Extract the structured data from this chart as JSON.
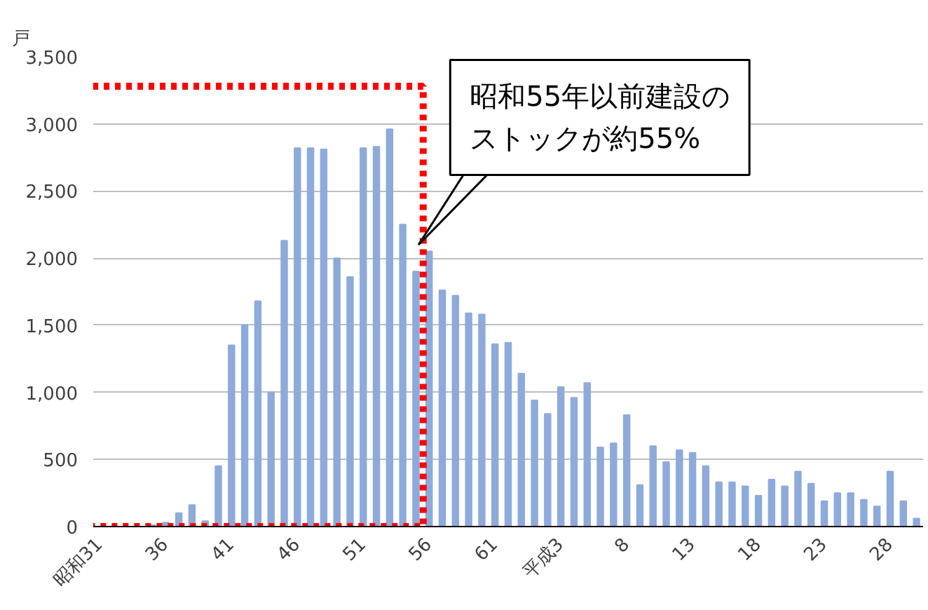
{
  "chart_data": {
    "type": "bar",
    "ylabel": "戸",
    "categories": [
      "昭和31",
      null,
      null,
      null,
      null,
      "36",
      null,
      null,
      null,
      null,
      "41",
      null,
      null,
      null,
      null,
      "46",
      null,
      null,
      null,
      null,
      "51",
      null,
      null,
      null,
      null,
      "56",
      null,
      null,
      null,
      null,
      "61",
      null,
      null,
      null,
      null,
      "平成3",
      null,
      null,
      null,
      null,
      "8",
      null,
      null,
      null,
      null,
      "13",
      null,
      null,
      null,
      null,
      "18",
      null,
      null,
      null,
      null,
      "23",
      null,
      null,
      null,
      null,
      "28",
      null,
      null
    ],
    "values": [
      0,
      0,
      0,
      0,
      10,
      30,
      100,
      160,
      40,
      450,
      1350,
      1500,
      1680,
      1000,
      2130,
      2820,
      2820,
      2810,
      2000,
      1860,
      2820,
      2830,
      2960,
      2250,
      1900,
      2050,
      1760,
      1720,
      1590,
      1580,
      1360,
      1370,
      1140,
      940,
      840,
      1040,
      960,
      1070,
      590,
      620,
      830,
      310,
      600,
      480,
      570,
      550,
      450,
      330,
      330,
      300,
      230,
      350,
      300,
      410,
      320,
      190,
      250,
      250,
      200,
      150,
      410,
      190,
      60
    ],
    "color": "#8eaadb",
    "ylim": [
      0,
      3500
    ],
    "yticks": [
      {
        "value": 0,
        "label": "0"
      },
      {
        "value": 500,
        "label": "500"
      },
      {
        "value": 1000,
        "label": "1,000"
      },
      {
        "value": 1500,
        "label": "1,500"
      },
      {
        "value": 2000,
        "label": "2,000"
      },
      {
        "value": 2500,
        "label": "2,500"
      },
      {
        "value": 3000,
        "label": "3,000"
      },
      {
        "value": 3500,
        "label": "3,500"
      }
    ],
    "grid": "y",
    "annotations": [
      "昭和55年以前建設のストックが約55%"
    ]
  }
}
